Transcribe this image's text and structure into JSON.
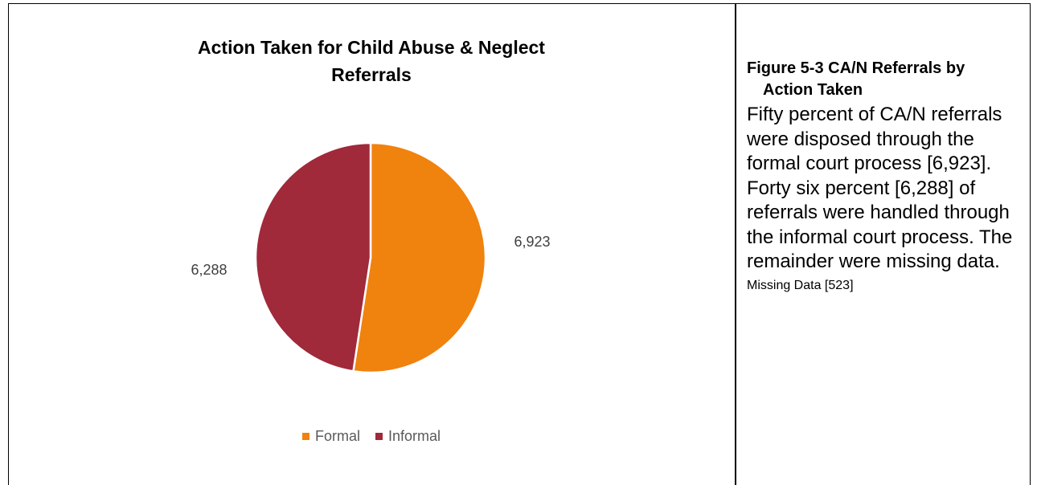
{
  "chart_data": {
    "type": "pie",
    "title_lines": [
      "Action Taken for Child Abuse & Neglect",
      "Referrals"
    ],
    "categories": [
      "Formal",
      "Informal"
    ],
    "values": [
      6923,
      6288
    ],
    "data_labels": [
      "6,923",
      "6,288"
    ],
    "colors": [
      "#F0820E",
      "#A0293A"
    ],
    "legend_position": "bottom"
  },
  "caption": {
    "title_line1": "Figure 5-3 CA/N Referrals by",
    "title_line2": "Action Taken",
    "body": "Fifty percent of CA/N referrals were disposed through the formal court process [6,923]. Forty six percent [6,288] of referrals were handled through the informal court process. The remainder were missing data.",
    "missing": "Missing Data [523]"
  }
}
